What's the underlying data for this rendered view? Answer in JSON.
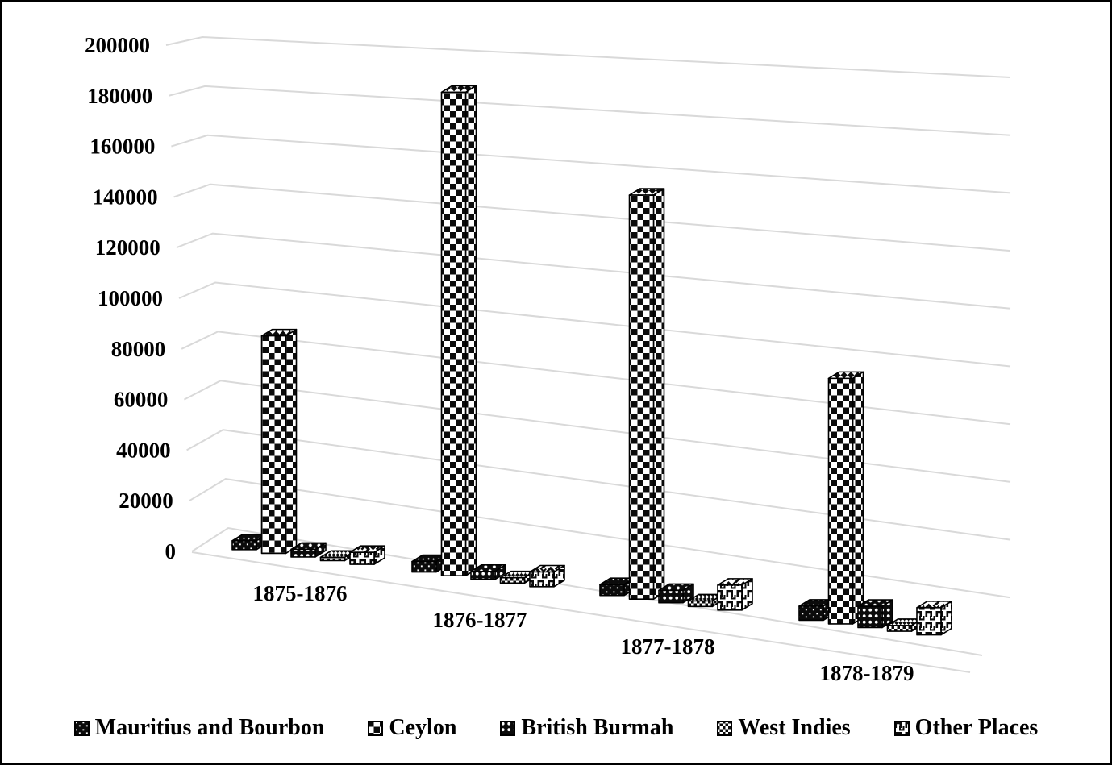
{
  "chart_data": {
    "type": "bar",
    "variant": "3d-clustered-column-black-white-patterns",
    "title": "",
    "xlabel": "",
    "ylabel": "",
    "categories": [
      "1875-1876",
      "1876-1877",
      "1877-1878",
      "1878-1879"
    ],
    "series": [
      {
        "name": "Mauritius and Bourbon",
        "pattern": "dark-sparse-white-dots",
        "values": [
          3500,
          4000,
          4000,
          5000
        ]
      },
      {
        "name": "Ceylon",
        "pattern": "large-checkerboard",
        "values": [
          85000,
          183000,
          148000,
          87000
        ]
      },
      {
        "name": "British Burmah",
        "pattern": "dark-white-dot-grid",
        "values": [
          3000,
          3000,
          4500,
          7500
        ]
      },
      {
        "name": "West Indies",
        "pattern": "small-checkerboard",
        "values": [
          1300,
          2000,
          2000,
          2000
        ]
      },
      {
        "name": "Other Places",
        "pattern": "divot-blocks",
        "values": [
          4600,
          5500,
          9000,
          9500
        ]
      }
    ],
    "ylim": [
      0,
      200000
    ],
    "ytick_step": 20000,
    "yticks": [
      "0",
      "20000",
      "40000",
      "60000",
      "80000",
      "100000",
      "120000",
      "140000",
      "160000",
      "180000",
      "200000"
    ],
    "grid": true,
    "legend_position": "bottom",
    "colors": {
      "bar_ink": "#111111",
      "grid": "#d9d9d9",
      "background": "#ffffff",
      "border": "#000000"
    }
  }
}
